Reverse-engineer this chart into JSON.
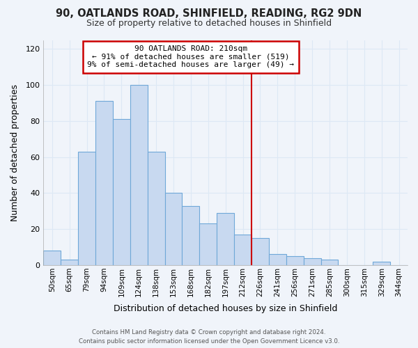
{
  "title": "90, OATLANDS ROAD, SHINFIELD, READING, RG2 9DN",
  "subtitle": "Size of property relative to detached houses in Shinfield",
  "xlabel": "Distribution of detached houses by size in Shinfield",
  "ylabel": "Number of detached properties",
  "bar_labels": [
    "50sqm",
    "65sqm",
    "79sqm",
    "94sqm",
    "109sqm",
    "124sqm",
    "138sqm",
    "153sqm",
    "168sqm",
    "182sqm",
    "197sqm",
    "212sqm",
    "226sqm",
    "241sqm",
    "256sqm",
    "271sqm",
    "285sqm",
    "300sqm",
    "315sqm",
    "329sqm",
    "344sqm"
  ],
  "bar_values": [
    8,
    3,
    63,
    91,
    81,
    100,
    63,
    40,
    33,
    23,
    29,
    17,
    15,
    6,
    5,
    4,
    3,
    0,
    0,
    2,
    0
  ],
  "bar_color": "#c8d9f0",
  "bar_edgecolor": "#6fa8d8",
  "annotation_title": "90 OATLANDS ROAD: 210sqm",
  "annotation_line1": "← 91% of detached houses are smaller (519)",
  "annotation_line2": "9% of semi-detached houses are larger (49) →",
  "vline_x_index": 11.5,
  "vline_color": "#cc0000",
  "annotation_box_edgecolor": "#cc0000",
  "ylim": [
    0,
    125
  ],
  "yticks": [
    0,
    20,
    40,
    60,
    80,
    100,
    120
  ],
  "background_color": "#f0f4fa",
  "grid_color": "#dde8f5",
  "footer_line1": "Contains HM Land Registry data © Crown copyright and database right 2024.",
  "footer_line2": "Contains public sector information licensed under the Open Government Licence v3.0."
}
